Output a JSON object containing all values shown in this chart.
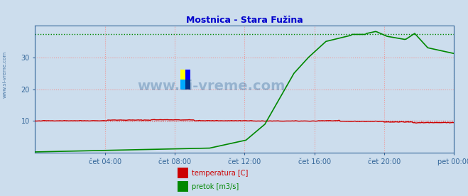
{
  "title": "Mostnica - Stara Fužina",
  "title_color": "#0000cc",
  "bg_color": "#ccdded",
  "plot_bg_color": "#ccdded",
  "fig_bg_color": "#ccdded",
  "grid_color": "#ee9999",
  "tick_label_color": "#336699",
  "x_tick_labels": [
    "čet 04:00",
    "čet 08:00",
    "čet 12:00",
    "čet 16:00",
    "čet 20:00",
    "pet 00:00"
  ],
  "x_tick_positions": [
    48,
    96,
    144,
    192,
    240,
    288
  ],
  "ylim": [
    0,
    40
  ],
  "xlim": [
    0,
    288
  ],
  "y_ticks": [
    10,
    20,
    30
  ],
  "temp_color": "#cc0000",
  "flow_color": "#008800",
  "watermark_text": "www.si-vreme.com",
  "watermark_color": "#336699",
  "legend_temp_label": "temperatura [C]",
  "legend_flow_label": "pretok [m3/s]",
  "legend_temp_color": "#cc0000",
  "legend_flow_color": "#008800",
  "dotted_green_y": 37.2,
  "dotted_red_y": 10.1,
  "side_label": "www.si-vreme.com",
  "side_label_color": "#336699",
  "spine_color": "#336699"
}
